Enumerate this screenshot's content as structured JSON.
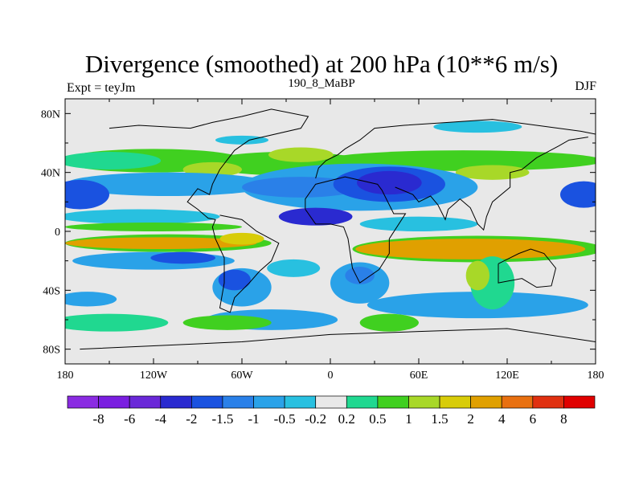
{
  "chart_data": {
    "type": "heatmap",
    "title": "Divergence (smoothed) at 200 hPa (10**6 m/s)",
    "left_label": "Expt = teyJm",
    "center_label": "190_8_MaBP",
    "right_label": "DJF",
    "x_range": [
      -180,
      180
    ],
    "y_range": [
      -90,
      90
    ],
    "x_ticks": [
      {
        "value": -180,
        "label": "180"
      },
      {
        "value": -120,
        "label": "120W"
      },
      {
        "value": -60,
        "label": "60W"
      },
      {
        "value": 0,
        "label": "0"
      },
      {
        "value": 60,
        "label": "60E"
      },
      {
        "value": 120,
        "label": "120E"
      },
      {
        "value": 180,
        "label": "180"
      }
    ],
    "y_ticks": [
      {
        "value": 80,
        "label": "80N"
      },
      {
        "value": 40,
        "label": "40N"
      },
      {
        "value": 0,
        "label": "0"
      },
      {
        "value": -40,
        "label": "40S"
      },
      {
        "value": -80,
        "label": "80S"
      }
    ],
    "colorbar": {
      "colors": [
        "#8a2be2",
        "#7a1ee0",
        "#6a28d8",
        "#2a2ad0",
        "#1a52e0",
        "#2a80e8",
        "#2aa2e8",
        "#28c0e0",
        "#e8e8e8",
        "#20d890",
        "#40d020",
        "#a8d828",
        "#d8cc08",
        "#e0a000",
        "#e87010",
        "#e03010",
        "#e00000"
      ],
      "levels": [
        "-8",
        "-6",
        "-4",
        "-2",
        "-1.5",
        "-1",
        "-0.5",
        "-0.2",
        "0.2",
        "0.5",
        "1",
        "1.5",
        "2",
        "4",
        "6",
        "8"
      ]
    },
    "features": [
      {
        "name": "equatorial-convergence-band",
        "lon": [
          -180,
          -40
        ],
        "lat": [
          -20,
          0
        ],
        "level": "2"
      },
      {
        "name": "equatorial-indian-ocean-divergence",
        "lon": [
          20,
          180
        ],
        "lat": [
          -30,
          -2
        ],
        "level": "4"
      },
      {
        "name": "tibet-convergence",
        "lon": [
          10,
          70
        ],
        "lat": [
          18,
          45
        ],
        "level": "-4"
      },
      {
        "name": "pacific-convergence-west",
        "lon": [
          -180,
          -160
        ],
        "lat": [
          15,
          35
        ],
        "level": "-2"
      },
      {
        "name": "pacific-convergence-east",
        "lon": [
          160,
          180
        ],
        "lat": [
          15,
          35
        ],
        "level": "-2"
      },
      {
        "name": "south-atlantic-convergence",
        "lon": [
          -75,
          -50
        ],
        "lat": [
          -50,
          -25
        ],
        "level": "-2"
      },
      {
        "name": "northern-midlatitude-divergence",
        "lon": [
          -180,
          180
        ],
        "lat": [
          40,
          60
        ],
        "level": "0.5"
      },
      {
        "name": "southern-midlatitude-divergence",
        "lon": [
          -180,
          40
        ],
        "lat": [
          -80,
          -55
        ],
        "level": "0.5"
      }
    ]
  }
}
